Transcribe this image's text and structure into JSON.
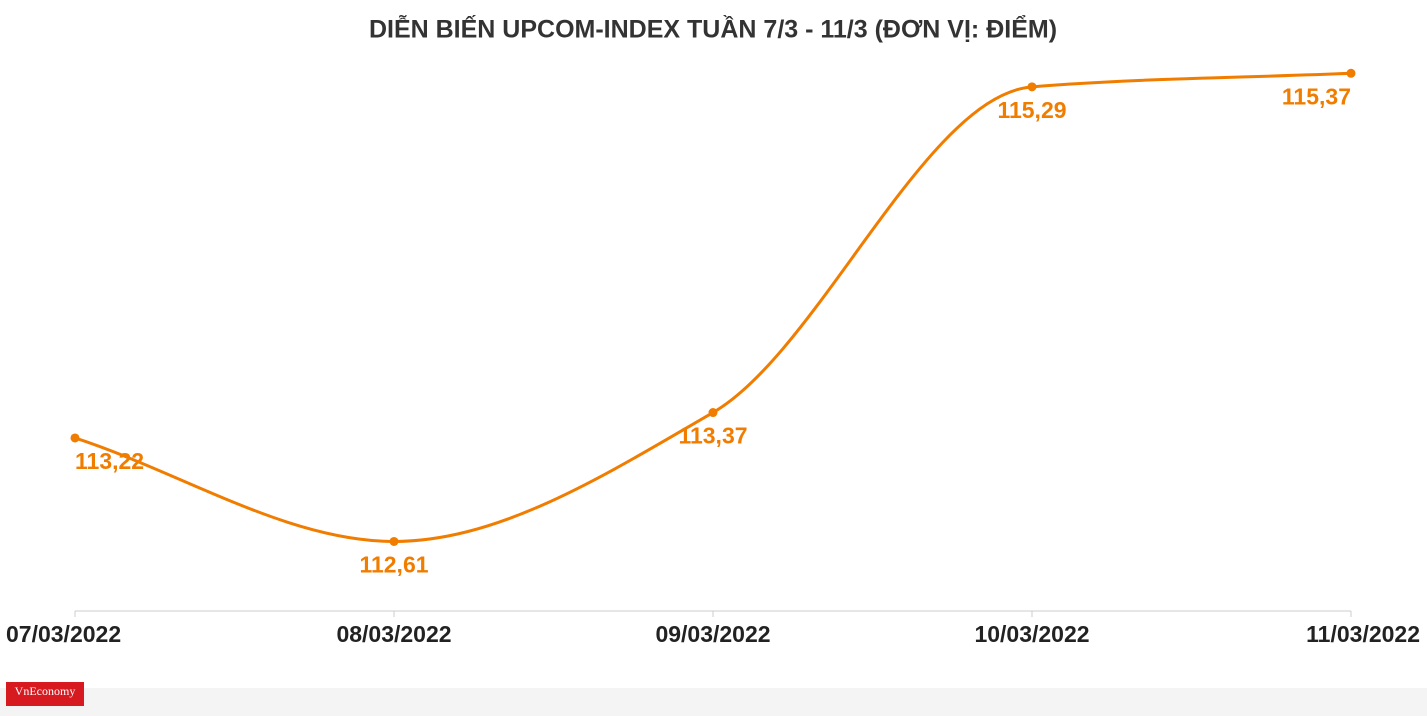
{
  "chart_data": {
    "type": "line",
    "title": "DIỄN BIẾN UPCOM-INDEX TUẦN 7/3 - 11/3 (ĐƠN VỊ: ĐIỂM)",
    "categories": [
      "07/03/2022",
      "08/03/2022",
      "09/03/2022",
      "10/03/2022",
      "11/03/2022"
    ],
    "series": [
      {
        "name": "UPCOM-Index",
        "color": "#f07d00",
        "values": [
          113.22,
          112.61,
          113.37,
          115.29,
          115.37
        ],
        "value_labels": [
          "113,22",
          "112,61",
          "113,37",
          "115,29",
          "115,37"
        ]
      }
    ],
    "ylim": [
      112.2,
      115.46
    ],
    "grid": false
  },
  "logo": "VnEconomy"
}
